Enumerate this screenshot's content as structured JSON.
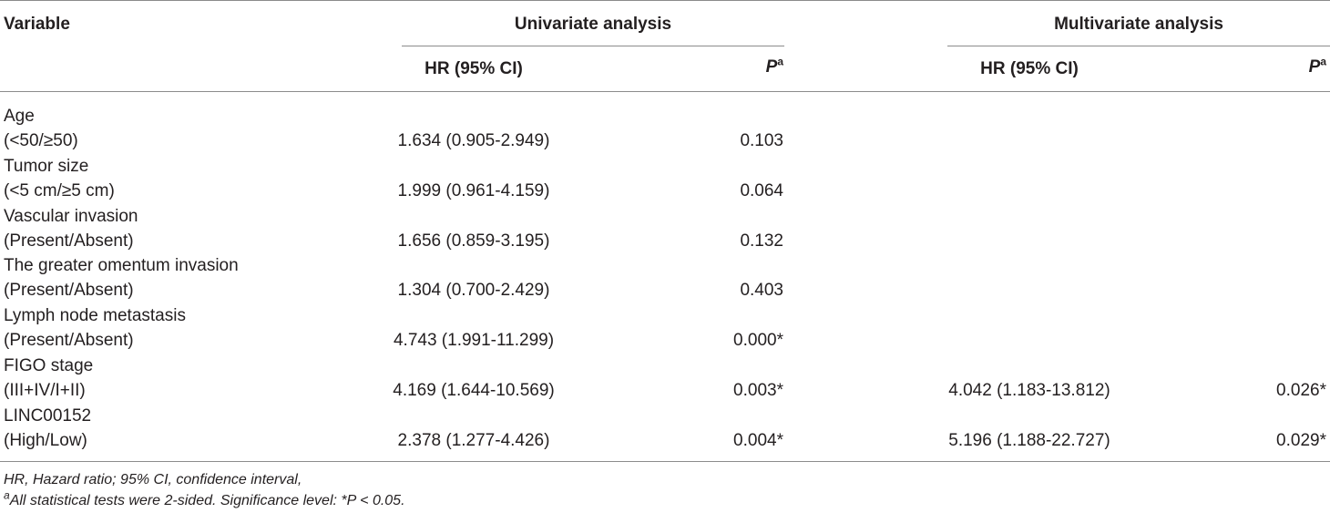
{
  "header": {
    "variable": "Variable",
    "univariate": "Univariate analysis",
    "multivariate": "Multivariate analysis",
    "hr_label": "HR (95% CI)",
    "p_label": "P",
    "p_sup": "a"
  },
  "rows": [
    {
      "name": "Age",
      "category": "(<50/≥50)",
      "uni_hr": "1.634 (0.905-2.949)",
      "uni_p": "0.103",
      "multi_hr": "",
      "multi_p": ""
    },
    {
      "name": "Tumor size",
      "category": "(<5 cm/≥5 cm)",
      "uni_hr": "1.999 (0.961-4.159)",
      "uni_p": "0.064",
      "multi_hr": "",
      "multi_p": ""
    },
    {
      "name": "Vascular invasion",
      "category": "(Present/Absent)",
      "uni_hr": "1.656 (0.859-3.195)",
      "uni_p": "0.132",
      "multi_hr": "",
      "multi_p": ""
    },
    {
      "name": "The greater omentum invasion",
      "category": "(Present/Absent)",
      "uni_hr": "1.304 (0.700-2.429)",
      "uni_p": "0.403",
      "multi_hr": "",
      "multi_p": ""
    },
    {
      "name": "Lymph node metastasis",
      "category": "(Present/Absent)",
      "uni_hr": "4.743 (1.991-11.299)",
      "uni_p": "0.000*",
      "multi_hr": "",
      "multi_p": ""
    },
    {
      "name": "FIGO stage",
      "category": "(III+IV/I+II)",
      "uni_hr": "4.169 (1.644-10.569)",
      "uni_p": "0.003*",
      "multi_hr": "4.042 (1.183-13.812)",
      "multi_p": "0.026*"
    },
    {
      "name": "LINC00152",
      "category": "(High/Low)",
      "uni_hr": "2.378 (1.277-4.426)",
      "uni_p": "0.004*",
      "multi_hr": "5.196 (1.188-22.727)",
      "multi_p": "0.029*"
    }
  ],
  "footnotes": {
    "line1": "HR, Hazard ratio; 95% CI, confidence interval,",
    "line2_sup": "a",
    "line2": "All statistical tests were 2-sided. Significance level: *P < 0.05."
  }
}
